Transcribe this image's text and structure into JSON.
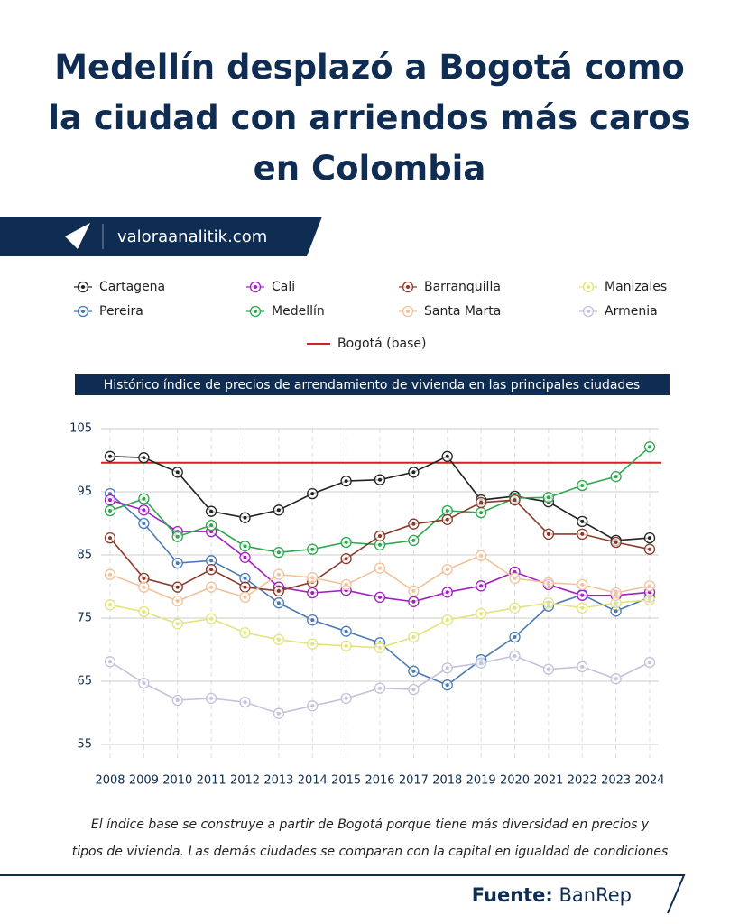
{
  "header": {
    "title": "Medellín desplazó a Bogotá como la ciudad con arriendos más caros en Colombia",
    "brand": "valoraanalitik.com"
  },
  "chart_data": {
    "type": "line",
    "title": "Histórico índice de precios de arrendamiento de vivienda en las principales ciudades",
    "categories": [
      "2008",
      "2009",
      "2010",
      "2011",
      "2012",
      "2013",
      "2014",
      "2015",
      "2016",
      "2017",
      "2018",
      "2019",
      "2020",
      "2021",
      "2022",
      "2023",
      "2024"
    ],
    "ylim": [
      55,
      105
    ],
    "yticks": [
      55,
      65,
      75,
      85,
      95,
      105
    ],
    "grid": true,
    "series": [
      {
        "name": "Cartagena",
        "color": "#222222",
        "values": [
          100.6,
          100.4,
          98.1,
          91.9,
          90.9,
          92.1,
          94.7,
          96.7,
          96.9,
          98.1,
          100.6,
          93.7,
          94.3,
          93.4,
          90.3,
          87.3,
          87.7
        ]
      },
      {
        "name": "Pereira",
        "color": "#4a7ab5",
        "values": [
          94.7,
          90,
          83.7,
          84.1,
          81.3,
          77.4,
          74.7,
          72.9,
          71.1,
          66.6,
          64.4,
          68.4,
          72,
          76.9,
          78.7,
          76.1,
          78.3
        ]
      },
      {
        "name": "Cali",
        "color": "#a020c0",
        "values": [
          93.7,
          92.1,
          88.7,
          88.7,
          84.6,
          79.9,
          79,
          79.4,
          78.3,
          77.6,
          79.1,
          80.1,
          82.3,
          80.3,
          78.6,
          78.6,
          79.1
        ]
      },
      {
        "name": "Medellín",
        "color": "#2ea84f",
        "values": [
          92,
          93.9,
          87.9,
          89.7,
          86.4,
          85.4,
          85.9,
          87,
          86.6,
          87.3,
          92,
          91.7,
          94,
          94.1,
          96,
          97.4,
          102.1
        ]
      },
      {
        "name": "Barranquilla",
        "color": "#8b3a2a",
        "values": [
          87.7,
          81.3,
          79.9,
          82.7,
          79.9,
          79.3,
          80.7,
          84.4,
          88,
          89.9,
          90.6,
          93.3,
          93.7,
          88.3,
          88.3,
          87,
          85.9
        ]
      },
      {
        "name": "Santa Marta",
        "color": "#f2c29a",
        "values": [
          81.9,
          79.9,
          77.7,
          79.9,
          78.3,
          81.9,
          81.4,
          80.3,
          82.9,
          79.3,
          82.7,
          84.9,
          81.3,
          80.6,
          80.3,
          79,
          80.1
        ]
      },
      {
        "name": "Manizales",
        "color": "#e3e37e",
        "values": [
          77.1,
          76,
          74.1,
          74.9,
          72.7,
          71.6,
          70.9,
          70.6,
          70.3,
          72,
          74.7,
          75.7,
          76.6,
          77.4,
          76.6,
          77.4,
          77.9
        ]
      },
      {
        "name": "Armenia",
        "color": "#c2c2da",
        "values": [
          68.1,
          64.7,
          62,
          62.3,
          61.7,
          59.9,
          61.1,
          62.3,
          63.9,
          63.7,
          67.1,
          67.9,
          69,
          66.9,
          67.3,
          65.4,
          68
        ]
      }
    ],
    "reference_line": {
      "name": "Bogotá  (base)",
      "value": 99.6,
      "color": "#d62027"
    }
  },
  "footer": {
    "note": [
      "El índice base se construye a partir de Bogotá porque tiene más diversidad en precios y",
      "tipos de vivienda. Las demás ciudades se comparan con la capital en igualdad de condiciones"
    ],
    "source_label": "Fuente:",
    "source": "BanRep"
  }
}
